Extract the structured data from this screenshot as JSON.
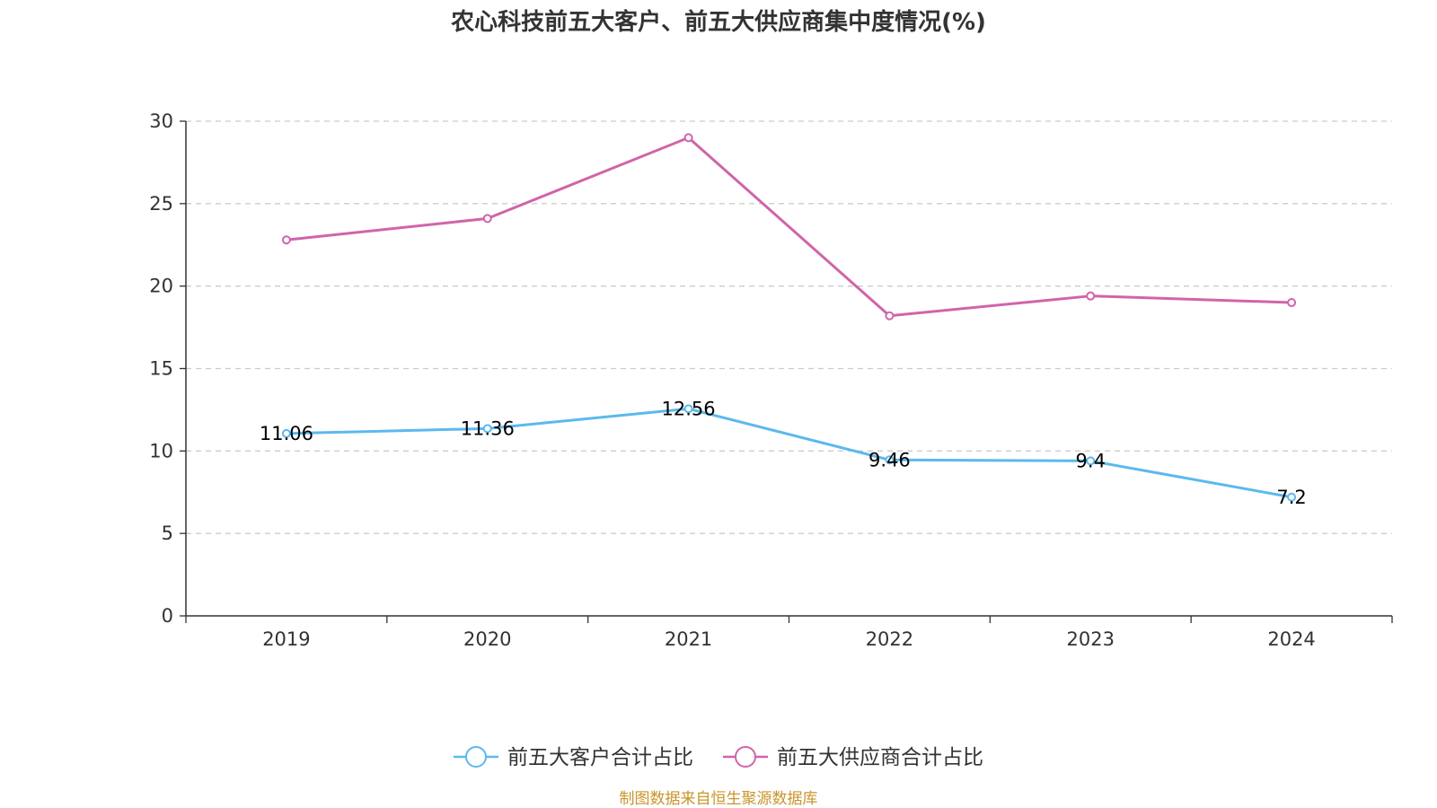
{
  "chart_data": {
    "type": "line",
    "title": "农心科技前五大客户、前五大供应商集中度情况(%)",
    "categories": [
      "2019",
      "2020",
      "2021",
      "2022",
      "2023",
      "2024"
    ],
    "ylim": [
      0,
      30
    ],
    "yticks": [
      0,
      5,
      10,
      15,
      20,
      25,
      30
    ],
    "grid": true,
    "legend_position": "bottom-center",
    "series": [
      {
        "name": "前五大客户合计占比",
        "values": [
          11.06,
          11.36,
          12.56,
          9.46,
          9.4,
          7.2
        ],
        "labels": [
          "11.06",
          "11.36",
          "12.56",
          "9.46",
          "9.4",
          "7.2"
        ],
        "color": "#5bb9ee"
      },
      {
        "name": "前五大供应商合计占比",
        "values": [
          22.8,
          24.1,
          29.0,
          18.2,
          19.4,
          19.0
        ],
        "color": "#d064aa"
      }
    ],
    "source": "制图数据来自恒生聚源数据库"
  }
}
